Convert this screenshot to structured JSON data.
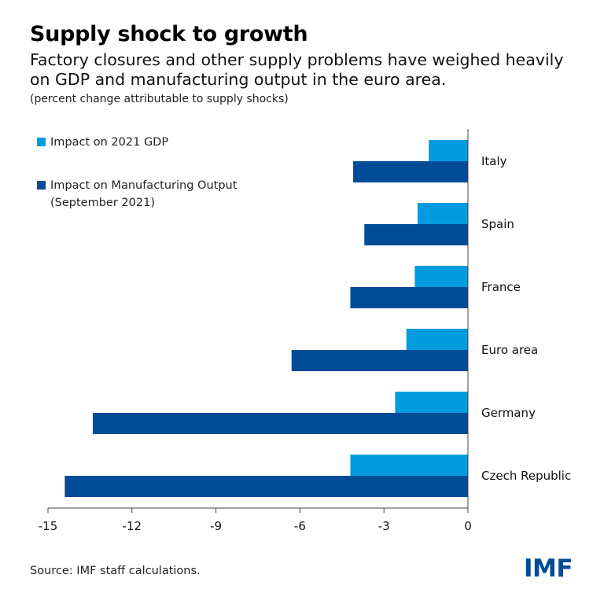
{
  "header": {
    "title": "Supply shock to growth",
    "subtitle": "Factory closures and other supply problems have weighed heavily on GDP and manufacturing output in the euro area.",
    "unit_note": "(percent change attributable to supply shocks)"
  },
  "footer": {
    "source": "Source: IMF staff calculations.",
    "logo_text": "IMF"
  },
  "colors": {
    "gdp": "#009cde",
    "manufacturing": "#004c97",
    "axis": "#444444"
  },
  "chart_data": {
    "type": "bar",
    "orientation": "horizontal",
    "categories": [
      "Italy",
      "Spain",
      "France",
      "Euro area",
      "Germany",
      "Czech Republic"
    ],
    "series": [
      {
        "name": "Impact on 2021 GDP",
        "values": [
          -1.4,
          -1.8,
          -1.9,
          -2.2,
          -2.6,
          -4.2
        ]
      },
      {
        "name": "Impact on Manufacturing Output (September 2021)",
        "values": [
          -4.1,
          -3.7,
          -4.2,
          -6.3,
          -13.4,
          -14.4
        ]
      }
    ],
    "xlim": [
      -15,
      0
    ],
    "xticks": [
      "-15",
      "-12",
      "-9",
      "-6",
      "-3",
      "0"
    ],
    "xtick_values": [
      -15,
      -12,
      -9,
      -6,
      -3,
      0
    ],
    "grid": false,
    "legend_position": "top-left"
  }
}
